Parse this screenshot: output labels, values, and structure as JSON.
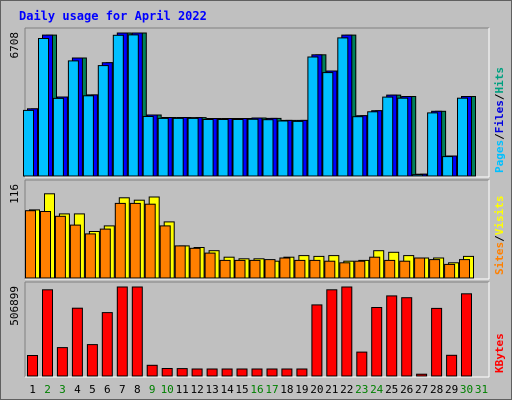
{
  "chart_data": {
    "type": "bar",
    "title": "Daily usage for April 2022",
    "categories": [
      "1",
      "2",
      "3",
      "4",
      "5",
      "6",
      "7",
      "8",
      "9",
      "10",
      "11",
      "12",
      "13",
      "14",
      "15",
      "16",
      "17",
      "18",
      "19",
      "20",
      "21",
      "22",
      "23",
      "24",
      "25",
      "26",
      "27",
      "28",
      "29",
      "30",
      "31"
    ],
    "weekend_days": [
      "2",
      "3",
      "9",
      "10",
      "16",
      "17",
      "23",
      "24",
      "30",
      "31"
    ],
    "panels": [
      {
        "id": "hits-files-pages",
        "max_label": "6708",
        "ylim": [
          0,
          6708
        ],
        "right_labels": [
          "Pages",
          "/",
          "Files",
          "/",
          "Hits"
        ],
        "right_colors": [
          "#00c0ff",
          "#000000",
          "#0000e0",
          "#000000",
          "#00a080"
        ],
        "series": [
          {
            "name": "Hits",
            "color": "#00805b",
            "values": [
              3150,
              6608,
              3705,
              5533,
              3805,
              5315,
              6708,
              6708,
              2860,
              2745,
              2745,
              2740,
              2695,
              2695,
              2695,
              2720,
              2700,
              2610,
              2610,
              5686,
              4925,
              6608,
              2830,
              3065,
              3797,
              3731,
              85,
              3035,
              940,
              3731,
              0
            ]
          },
          {
            "name": "Files",
            "color": "#0000ff",
            "values": [
              3150,
              6608,
              3705,
              5533,
              3805,
              5315,
              6708,
              6708,
              2860,
              2745,
              2745,
              2740,
              2695,
              2695,
              2695,
              2720,
              2700,
              2610,
              2610,
              5686,
              4925,
              6608,
              2830,
              3065,
              3797,
              3731,
              85,
              3035,
              940,
              3731,
              0
            ]
          },
          {
            "name": "Pages",
            "color": "#00c0ff",
            "values": [
              3075,
              6450,
              3640,
              5400,
              3760,
              5180,
              6600,
              6620,
              2790,
              2700,
              2700,
              2700,
              2650,
              2650,
              2650,
              2660,
              2640,
              2580,
              2560,
              5580,
              4850,
              6480,
              2780,
              3010,
              3700,
              3650,
              60,
              2960,
              910,
              3650,
              0
            ]
          }
        ]
      },
      {
        "id": "visits-sites",
        "max_label": "116",
        "ylim": [
          0,
          116
        ],
        "right_labels": [
          "Sites",
          "/",
          "Visits"
        ],
        "right_colors": [
          "#ff8000",
          "#000000",
          "#ffff00"
        ],
        "series": [
          {
            "name": "Visits",
            "color": "#ffff00",
            "values": [
              85,
              105,
              80,
              80,
              58,
              65,
              100,
              97,
              101,
              70,
              40,
              38,
              34,
              26,
              24,
              24,
              21,
              26,
              28,
              27,
              28,
              21,
              22,
              34,
              32,
              28,
              25,
              25,
              19,
              27,
              0
            ]
          },
          {
            "name": "Sites",
            "color": "#ff8000",
            "values": [
              84,
              83,
              77,
              66,
              55,
              61,
              93,
              93,
              92,
              65,
              40,
              37,
              31,
              22,
              22,
              22,
              23,
              25,
              22,
              22,
              21,
              19,
              21,
              26,
              22,
              21,
              25,
              23,
              17,
              23,
              0
            ]
          }
        ]
      },
      {
        "id": "kbytes",
        "max_label": "506899",
        "ylim": [
          0,
          506899
        ],
        "right_labels": [
          "KBytes"
        ],
        "right_colors": [
          "#ff0000"
        ],
        "series": [
          {
            "name": "KBytes",
            "color": "#ff0000",
            "values": [
              117000,
              491000,
              162000,
              386000,
              179000,
              361000,
              506899,
              506899,
              61000,
              43000,
              42000,
              40000,
              40000,
              40000,
              40000,
              40000,
              40000,
              40000,
              40000,
              405000,
              491000,
              506899,
              136000,
              390000,
              456000,
              446000,
              10000,
              385000,
              118000,
              468000,
              0
            ]
          }
        ]
      }
    ]
  }
}
